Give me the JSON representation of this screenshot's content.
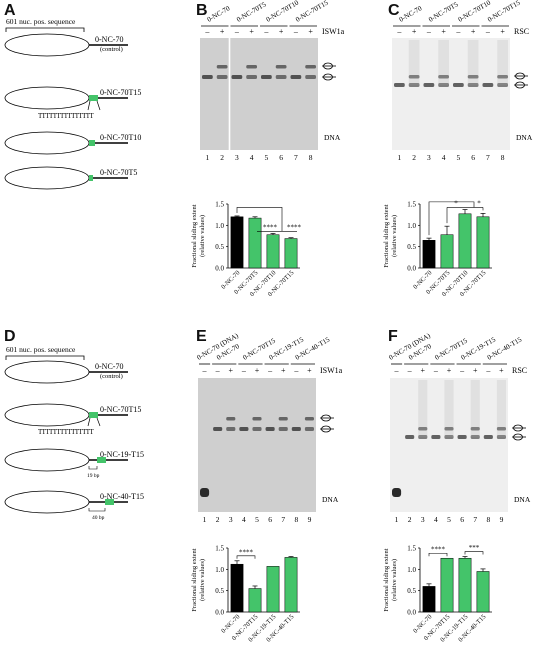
{
  "panels": {
    "A": {
      "letter": "A",
      "bracket_label": "601 nuc. pos. sequence",
      "constructs": [
        {
          "name": "0-NC-70",
          "sub": "(control)"
        },
        {
          "name": "0-NC-70T15"
        },
        {
          "name": "0-NC-70T10"
        },
        {
          "name": "0-NC-70T5"
        }
      ],
      "polyT": "TTTTTTTTTTTTTTT"
    },
    "B": {
      "letter": "B",
      "enzyme": "ISW1a",
      "groups": [
        "0-NC-70",
        "0-NC-70T5",
        "0-NC-70T10",
        "0-NC-70T15"
      ],
      "signs": [
        "–",
        "+",
        "–",
        "+",
        "–",
        "+",
        "–",
        "+"
      ],
      "lanes": [
        "1",
        "2",
        "3",
        "4",
        "5",
        "6",
        "7",
        "8"
      ],
      "dna_label": "DNA",
      "chart_data": {
        "type": "bar",
        "ylabel": "Fractional sliding extent (relative values)",
        "ylim": [
          0,
          1.5
        ],
        "yticks": [
          "0.0",
          "0.5",
          "1.0",
          "1.5"
        ],
        "categories": [
          "0-NC-70",
          "0-NC-70T5",
          "0-NC-70T10",
          "0-NC-70T15"
        ],
        "values": [
          1.2,
          1.17,
          0.78,
          0.69
        ],
        "errors": [
          0.02,
          0.03,
          0.03,
          0.02
        ],
        "colors": [
          "#000000",
          "#44c46a",
          "#44c46a",
          "#44c46a"
        ],
        "significance": [
          "****",
          "****"
        ]
      }
    },
    "C": {
      "letter": "C",
      "enzyme": "RSC",
      "groups": [
        "0-NC-70",
        "0-NC-70T5",
        "0-NC-70T10",
        "0-NC-70T15"
      ],
      "signs": [
        "–",
        "+",
        "–",
        "+",
        "–",
        "+",
        "–",
        "+"
      ],
      "lanes": [
        "1",
        "2",
        "3",
        "4",
        "5",
        "6",
        "7",
        "8"
      ],
      "dna_label": "DNA",
      "chart_data": {
        "type": "bar",
        "ylabel": "Fractional sliding extent (relative values)",
        "ylim": [
          0,
          1.5
        ],
        "yticks": [
          "0.0",
          "0.5",
          "1.0",
          "1.5"
        ],
        "categories": [
          "0-NC-70",
          "0-NC-70T5",
          "0-NC-70T10",
          "0-NC-70T15"
        ],
        "values": [
          0.65,
          0.78,
          1.27,
          1.2
        ],
        "errors": [
          0.05,
          0.2,
          0.1,
          0.08
        ],
        "colors": [
          "#000000",
          "#44c46a",
          "#44c46a",
          "#44c46a"
        ],
        "significance": [
          "*",
          "*"
        ]
      }
    },
    "D": {
      "letter": "D",
      "bracket_label": "601 nuc. pos. sequence",
      "constructs": [
        {
          "name": "0-NC-70",
          "sub": "(control)"
        },
        {
          "name": "0-NC-70T15"
        },
        {
          "name": "0-NC-19-T15",
          "spacer": "19 bp"
        },
        {
          "name": "0-NC-40-T15",
          "spacer": "40 bp"
        }
      ],
      "polyT": "TTTTTTTTTTTTTTT"
    },
    "E": {
      "letter": "E",
      "enzyme": "ISW1a",
      "groups": [
        "0-NC-70 (DNA)",
        "0-NC-70",
        "0-NC-70T15",
        "0-NC-19-T15",
        "0-NC-40-T15"
      ],
      "signs": [
        "–",
        "–",
        "+",
        "–",
        "+",
        "–",
        "+",
        "–",
        "+"
      ],
      "lanes": [
        "1",
        "2",
        "3",
        "4",
        "5",
        "6",
        "7",
        "8",
        "9"
      ],
      "dna_label": "DNA",
      "chart_data": {
        "type": "bar",
        "ylabel": "Fractional sliding extent (relative values)",
        "ylim": [
          0,
          1.5
        ],
        "yticks": [
          "0.0",
          "0.5",
          "1.0",
          "1.5"
        ],
        "categories": [
          "0-NC-70",
          "0-NC-70T15",
          "0-NC-19-T15",
          "0-NC-40-T15"
        ],
        "values": [
          1.12,
          0.55,
          1.07,
          1.28
        ],
        "errors": [
          0.08,
          0.06,
          0.0,
          0.02
        ],
        "colors": [
          "#000000",
          "#44c46a",
          "#44c46a",
          "#44c46a"
        ],
        "significance": [
          "****",
          "*"
        ]
      }
    },
    "F": {
      "letter": "F",
      "enzyme": "RSC",
      "groups": [
        "0-NC-70 (DNA)",
        "0-NC-70",
        "0-NC-70T15",
        "0-NC-19-T15",
        "0-NC-40-T15"
      ],
      "signs": [
        "–",
        "–",
        "+",
        "–",
        "+",
        "–",
        "+",
        "–",
        "+"
      ],
      "lanes": [
        "1",
        "2",
        "3",
        "4",
        "5",
        "6",
        "7",
        "8",
        "9"
      ],
      "dna_label": "DNA",
      "chart_data": {
        "type": "bar",
        "ylabel": "Fractional sliding extent (relative values)",
        "ylim": [
          0,
          1.5
        ],
        "yticks": [
          "0.0",
          "0.5",
          "1.0",
          "1.5"
        ],
        "categories": [
          "0-NC-70",
          "0-NC-70T15",
          "0-NC-19-T15",
          "0-NC-40-T15"
        ],
        "values": [
          0.6,
          1.26,
          1.26,
          0.95
        ],
        "errors": [
          0.06,
          0.0,
          0.04,
          0.06
        ],
        "colors": [
          "#000000",
          "#44c46a",
          "#44c46a",
          "#44c46a"
        ],
        "significance": [
          "****",
          "***",
          "***"
        ]
      }
    }
  }
}
